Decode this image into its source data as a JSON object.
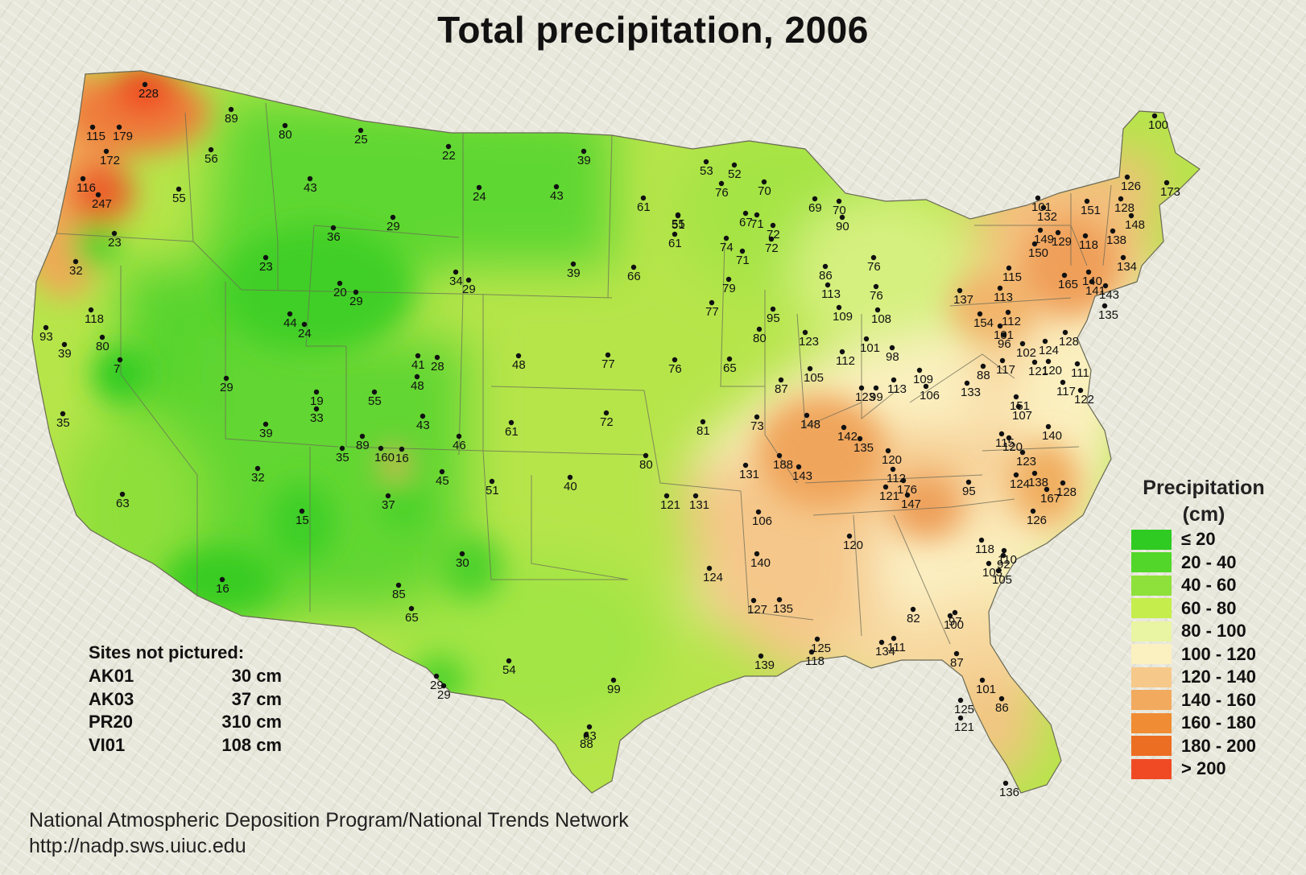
{
  "title": "Total precipitation, 2006",
  "legend": {
    "title_line1": "Precipitation",
    "title_line2": "(cm)",
    "items": [
      {
        "label": "≤ 20",
        "color": "#2fcb22"
      },
      {
        "label": "20 - 40",
        "color": "#52d62a"
      },
      {
        "label": "40 - 60",
        "color": "#8ee03a"
      },
      {
        "label": "60 - 80",
        "color": "#c5ee4c"
      },
      {
        "label": "80 - 100",
        "color": "#e9f5a2"
      },
      {
        "label": "100 - 120",
        "color": "#fbf0c0"
      },
      {
        "label": "120 - 140",
        "color": "#f6c98a"
      },
      {
        "label": "140 - 160",
        "color": "#f2aa5e"
      },
      {
        "label": "160 - 180",
        "color": "#ef8c34"
      },
      {
        "label": "180 - 200",
        "color": "#ec6e22"
      },
      {
        "label": "> 200",
        "color": "#f04a24"
      }
    ]
  },
  "sites_not_pictured": {
    "heading": "Sites not pictured:",
    "rows": [
      {
        "site": "AK01",
        "value": "30 cm"
      },
      {
        "site": "AK03",
        "value": "37 cm"
      },
      {
        "site": "PR20",
        "value": "310 cm"
      },
      {
        "site": "VI01",
        "value": "108 cm"
      }
    ]
  },
  "credits": {
    "line1": "National Atmospheric Deposition Program/National Trends Network",
    "line2": "http://nadp.sws.uiuc.edu"
  },
  "site_values": {
    "west": [
      "228",
      "115",
      "179",
      "172",
      "116",
      "247",
      "56",
      "55",
      "89",
      "80",
      "23",
      "32",
      "93",
      "118",
      "39",
      "80",
      "7",
      "35",
      "63",
      "29",
      "44",
      "24",
      "23",
      "43",
      "36",
      "25",
      "20",
      "29",
      "19",
      "39",
      "33",
      "32",
      "15",
      "16",
      "29"
    ],
    "mountain_plains": [
      "22",
      "24",
      "29",
      "34",
      "29",
      "43",
      "39",
      "39",
      "41",
      "28",
      "48",
      "55",
      "43",
      "89",
      "35",
      "160",
      "16",
      "46",
      "37",
      "45",
      "48",
      "61",
      "51",
      "72",
      "77",
      "76",
      "40",
      "80",
      "85",
      "30",
      "65",
      "54",
      "29"
    ],
    "central": [
      "76",
      "65",
      "66",
      "77",
      "55",
      "61",
      "51",
      "61",
      "53",
      "52",
      "76",
      "70",
      "67",
      "71",
      "69",
      "70",
      "72",
      "72",
      "74",
      "71",
      "86",
      "90",
      "113",
      "79",
      "95",
      "80",
      "81",
      "73",
      "87",
      "76",
      "109",
      "108",
      "101",
      "98",
      "123",
      "112",
      "105",
      "99",
      "123",
      "113",
      "109",
      "106",
      "133",
      "148",
      "142",
      "135",
      "120",
      "188",
      "131",
      "143",
      "112",
      "121",
      "176",
      "147",
      "106",
      "121",
      "131",
      "140",
      "124",
      "127",
      "135",
      "120",
      "125",
      "118",
      "134",
      "111",
      "139",
      "82",
      "97",
      "100",
      "63",
      "88",
      "99"
    ],
    "east": [
      "100",
      "126",
      "173",
      "101",
      "151",
      "128",
      "148",
      "132",
      "149",
      "129",
      "118",
      "138",
      "134",
      "150",
      "165",
      "140",
      "141",
      "143",
      "115",
      "113",
      "137",
      "112",
      "101",
      "154",
      "96",
      "102",
      "124",
      "128",
      "135",
      "88",
      "117",
      "121",
      "120",
      "111",
      "117",
      "122",
      "151",
      "107",
      "140",
      "115",
      "120",
      "123",
      "138",
      "167",
      "128",
      "124",
      "126",
      "95",
      "118",
      "110",
      "92",
      "103",
      "105",
      "87",
      "101",
      "86",
      "125",
      "121",
      "136"
    ]
  }
}
